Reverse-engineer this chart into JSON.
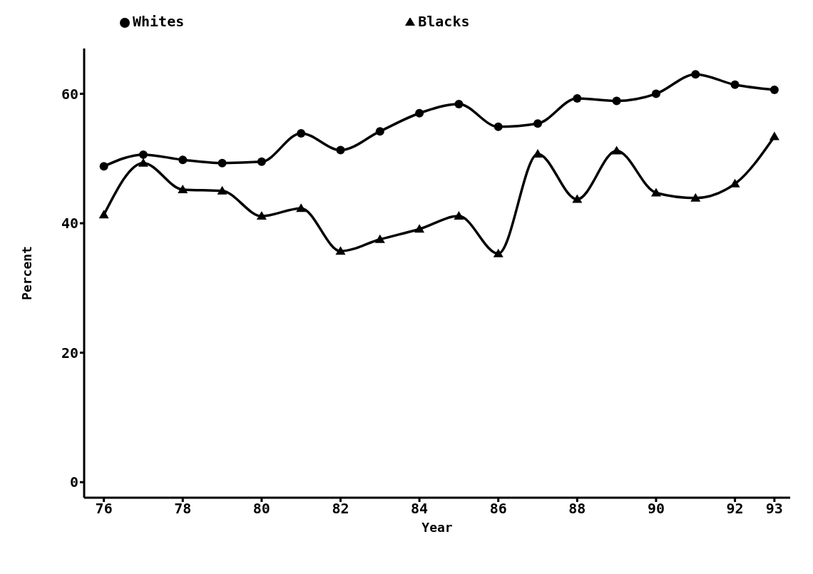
{
  "chart_data": {
    "type": "line",
    "xlabel": "Year",
    "ylabel": "Percent",
    "x": [
      76,
      77,
      78,
      79,
      80,
      81,
      82,
      83,
      84,
      85,
      86,
      87,
      88,
      89,
      90,
      91,
      92,
      93
    ],
    "series": [
      {
        "name": "Whites",
        "color": "#000000",
        "marker": "circle",
        "values": [
          48.8,
          50.6,
          49.8,
          49.3,
          49.5,
          53.9,
          51.3,
          54.2,
          57.0,
          58.4,
          54.9,
          55.4,
          59.3,
          58.9,
          60.0,
          63.0,
          61.4,
          60.6
        ]
      },
      {
        "name": "Blacks",
        "color": "#000000",
        "marker": "triangle",
        "values": [
          41.3,
          49.3,
          45.2,
          45.0,
          41.1,
          42.3,
          35.7,
          37.5,
          39.1,
          41.1,
          35.3,
          50.7,
          43.7,
          51.2,
          44.7,
          43.9,
          46.1,
          53.4
        ]
      }
    ],
    "xlim": [
      75.5,
      93.4
    ],
    "xticks": [
      76,
      78,
      80,
      82,
      84,
      86,
      88,
      90,
      92,
      93
    ],
    "ylim": [
      -2.4,
      67
    ],
    "yticks": [
      0,
      20,
      40,
      60
    ],
    "grid": false,
    "legend": "top",
    "line_style": "solid"
  }
}
